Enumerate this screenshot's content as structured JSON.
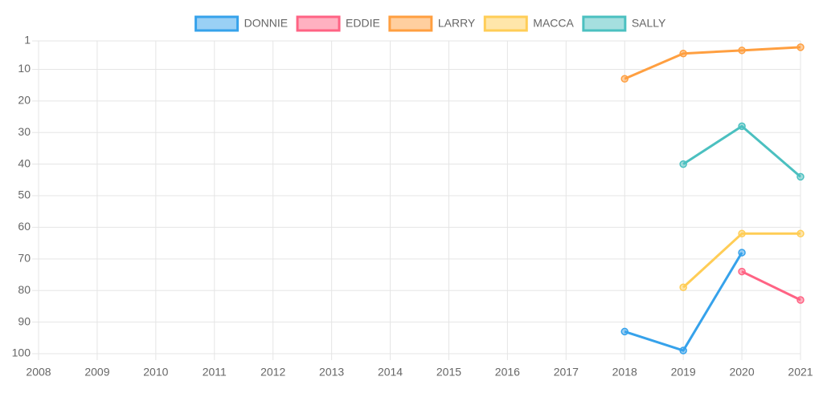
{
  "chart_data": {
    "type": "line",
    "categories": [
      "2008",
      "2009",
      "2010",
      "2011",
      "2012",
      "2013",
      "2014",
      "2015",
      "2016",
      "2017",
      "2018",
      "2019",
      "2020",
      "2021"
    ],
    "series": [
      {
        "name": "DONNIE",
        "color": "#36a2eb",
        "values": [
          null,
          null,
          null,
          null,
          null,
          null,
          null,
          null,
          null,
          null,
          93,
          99,
          68,
          null
        ]
      },
      {
        "name": "EDDIE",
        "color": "#ff6384",
        "values": [
          null,
          null,
          null,
          null,
          null,
          null,
          null,
          null,
          null,
          null,
          null,
          null,
          74,
          83
        ]
      },
      {
        "name": "LARRY",
        "color": "#ff9f40",
        "values": [
          null,
          null,
          null,
          null,
          null,
          null,
          null,
          null,
          null,
          null,
          13,
          5,
          4,
          3
        ]
      },
      {
        "name": "MACCA",
        "color": "#ffcd56",
        "values": [
          null,
          null,
          null,
          null,
          null,
          null,
          null,
          null,
          null,
          null,
          null,
          79,
          62,
          62
        ]
      },
      {
        "name": "SALLY",
        "color": "#4bc0c0",
        "values": [
          null,
          null,
          null,
          null,
          null,
          null,
          null,
          null,
          null,
          null,
          null,
          40,
          28,
          44
        ]
      }
    ],
    "ylim": [
      1,
      100
    ],
    "y_reversed": true,
    "yticks": [
      1,
      10,
      20,
      30,
      40,
      50,
      60,
      70,
      80,
      90,
      100
    ],
    "grid": true,
    "legend": "top"
  }
}
